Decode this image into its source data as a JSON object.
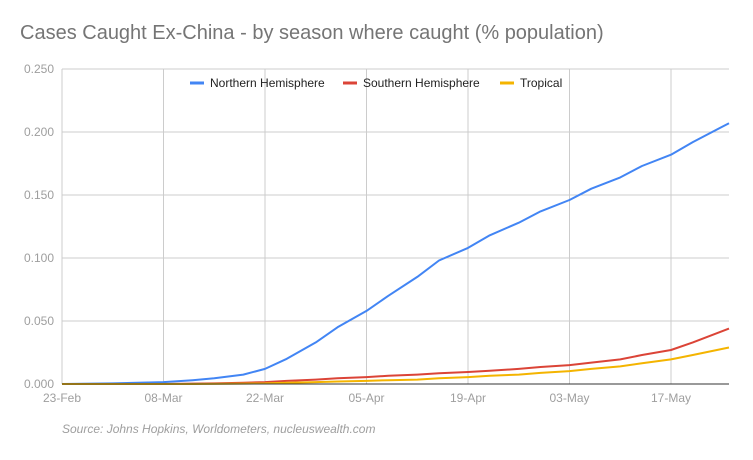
{
  "chart_data": {
    "type": "line",
    "title": "Cases Caught Ex-China - by season where caught (% population)",
    "source": "Source: Johns Hopkins, Worldometers, nucleuswealth.com",
    "xlabel": "",
    "ylabel": "",
    "ylim": [
      0,
      0.25
    ],
    "yticks": [
      "0.000",
      "0.050",
      "0.100",
      "0.150",
      "0.200",
      "0.250"
    ],
    "xrange": [
      "2020-02-23",
      "2020-05-25"
    ],
    "xticks": [
      {
        "date": "2020-02-23",
        "label": "23-Feb"
      },
      {
        "date": "2020-03-08",
        "label": "08-Mar"
      },
      {
        "date": "2020-03-22",
        "label": "22-Mar"
      },
      {
        "date": "2020-04-05",
        "label": "05-Apr"
      },
      {
        "date": "2020-04-19",
        "label": "19-Apr"
      },
      {
        "date": "2020-05-03",
        "label": "03-May"
      },
      {
        "date": "2020-05-17",
        "label": "17-May"
      }
    ],
    "grid": true,
    "legend_position": "top",
    "x": [
      "2020-02-23",
      "2020-03-01",
      "2020-03-08",
      "2020-03-12",
      "2020-03-15",
      "2020-03-19",
      "2020-03-22",
      "2020-03-25",
      "2020-03-29",
      "2020-04-01",
      "2020-04-05",
      "2020-04-08",
      "2020-04-12",
      "2020-04-15",
      "2020-04-19",
      "2020-04-22",
      "2020-04-26",
      "2020-04-29",
      "2020-05-03",
      "2020-05-06",
      "2020-05-10",
      "2020-05-13",
      "2020-05-17",
      "2020-05-20",
      "2020-05-25"
    ],
    "series": [
      {
        "name": "Northern Hemisphere",
        "color": "#4285f4",
        "values": [
          0.0,
          0.0005,
          0.0015,
          0.003,
          0.0045,
          0.0075,
          0.012,
          0.02,
          0.033,
          0.045,
          0.058,
          0.07,
          0.085,
          0.098,
          0.108,
          0.118,
          0.128,
          0.137,
          0.146,
          0.155,
          0.164,
          0.173,
          0.182,
          0.192,
          0.207
        ]
      },
      {
        "name": "Southern Hemisphere",
        "color": "#db4437",
        "values": [
          0.0,
          0.0,
          0.0,
          0.0003,
          0.0005,
          0.001,
          0.0015,
          0.0025,
          0.0035,
          0.0045,
          0.0055,
          0.0065,
          0.0075,
          0.0085,
          0.0095,
          0.0105,
          0.012,
          0.0135,
          0.015,
          0.017,
          0.0195,
          0.023,
          0.027,
          0.033,
          0.044
        ]
      },
      {
        "name": "Tropical",
        "color": "#f4b400",
        "values": [
          0.0,
          0.0,
          0.0,
          0.0,
          0.0001,
          0.0003,
          0.0005,
          0.001,
          0.0015,
          0.002,
          0.0025,
          0.003,
          0.0035,
          0.0045,
          0.0055,
          0.0065,
          0.0075,
          0.0088,
          0.0102,
          0.012,
          0.014,
          0.0165,
          0.0195,
          0.023,
          0.029
        ]
      }
    ]
  }
}
